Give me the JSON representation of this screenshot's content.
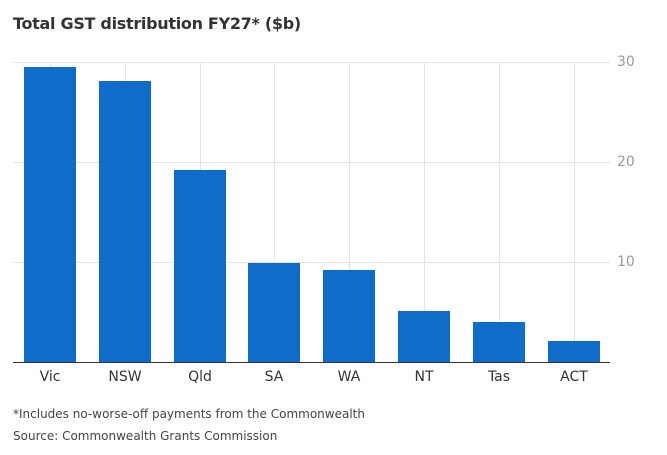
{
  "chart_data": {
    "type": "bar",
    "title": "Total GST distribution FY27* ($b)",
    "categories": [
      "Vic",
      "NSW",
      "Qld",
      "SA",
      "WA",
      "NT",
      "Tas",
      "ACT"
    ],
    "values": [
      29.5,
      28.1,
      19.2,
      9.9,
      9.2,
      5.1,
      4.0,
      2.1
    ],
    "xlabel": "",
    "ylabel": "$b",
    "ylim": [
      0,
      30
    ],
    "yticks": [
      10,
      20,
      30
    ],
    "y_axis_position": "right",
    "grid": true,
    "bar_color": "#0f6cc8",
    "annotations": [
      "*Includes no-worse-off payments from the Commonwealth",
      "Source: Commonwealth Grants Commission"
    ]
  },
  "title": "Total GST distribution FY27* ($b)",
  "yticks": [
    "30",
    "20",
    "10"
  ],
  "categories": [
    "Vic",
    "NSW",
    "Qld",
    "SA",
    "WA",
    "NT",
    "Tas",
    "ACT"
  ],
  "footnote": "*Includes no-worse-off payments from the Commonwealth",
  "source": "Source: Commonwealth Grants Commission"
}
